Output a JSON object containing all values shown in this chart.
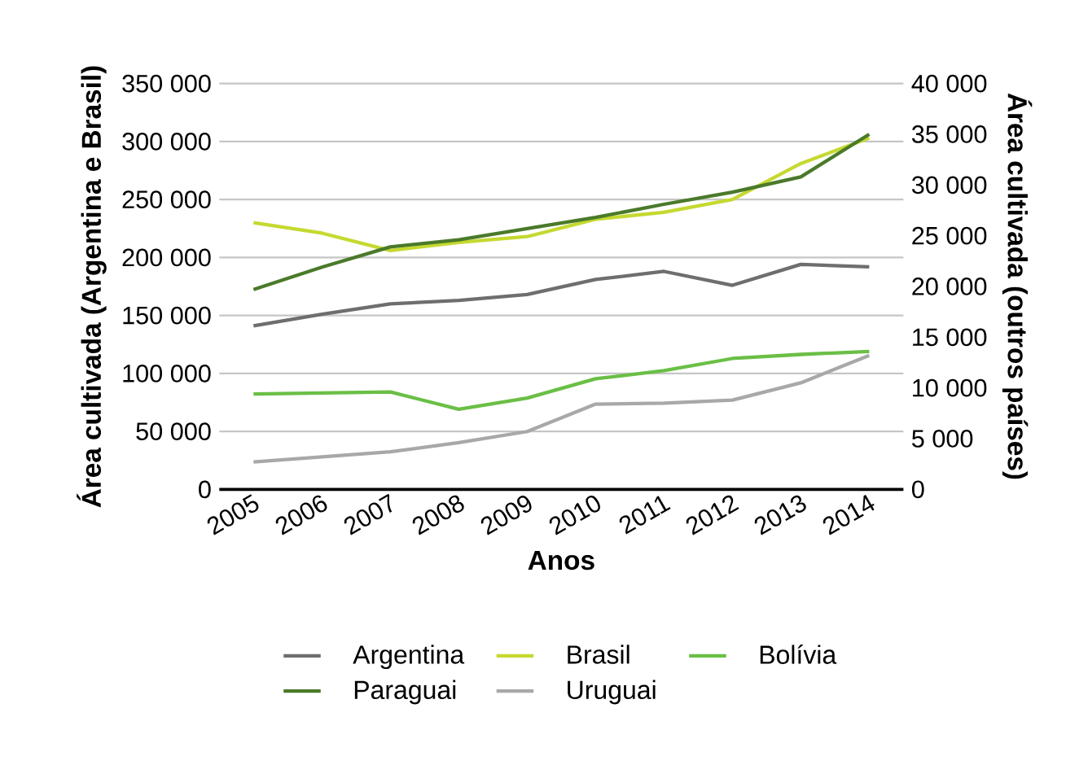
{
  "chart_data": {
    "type": "line",
    "xlabel": "Anos",
    "ylabel": "Área cultivada (Argentina e Brasil)",
    "y2label": "Área cultivada (outros países)",
    "categories": [
      "2005",
      "2006",
      "2007",
      "2008",
      "2009",
      "2010",
      "2011",
      "2012",
      "2013",
      "2014"
    ],
    "series": [
      {
        "name": "Argentina",
        "color": "#6d6e70",
        "values": [
          141000,
          151000,
          160000,
          163000,
          168000,
          181000,
          188000,
          176000,
          194000,
          192000
        ]
      },
      {
        "name": "Brasil",
        "color": "#c5d930",
        "values": [
          230000,
          221000,
          206000,
          213000,
          218000,
          233000,
          239000,
          250000,
          281000,
          303000
        ]
      },
      {
        "name": "Bolívia",
        "color": "#6abf45",
        "axis": "y2",
        "values": [
          9400,
          9500,
          9600,
          7900,
          9000,
          10900,
          11700,
          12900,
          13300,
          13600
        ]
      },
      {
        "name": "Paraguai",
        "color": "#4a7a2a",
        "axis": "y2",
        "values": [
          19700,
          21900,
          23900,
          24600,
          25700,
          26800,
          28100,
          29300,
          30800,
          35000
        ]
      },
      {
        "name": "Uruguai",
        "color": "#a8a8a8",
        "axis": "y2",
        "values": [
          2700,
          3200,
          3700,
          4600,
          5700,
          8400,
          8500,
          8800,
          10500,
          13200
        ]
      }
    ],
    "ylim": [
      0,
      350000
    ],
    "yticks": [
      0,
      {
        "value": 50000,
        "label": "50 000"
      },
      {
        "value": 100000,
        "label": "100 000"
      },
      {
        "value": 150000,
        "label": "150 000"
      },
      {
        "value": 200000,
        "label": "200 000"
      },
      {
        "value": 250000,
        "label": "250 000"
      },
      {
        "value": 300000,
        "label": "300 000"
      },
      {
        "value": 350000,
        "label": "350 000"
      }
    ],
    "y2lim": [
      0,
      40000
    ],
    "y2ticks": [
      0,
      {
        "value": 5000,
        "label": "5 000"
      },
      {
        "value": 10000,
        "label": "10 000"
      },
      {
        "value": 15000,
        "label": "15 000"
      },
      {
        "value": 20000,
        "label": "20 000"
      },
      {
        "value": 25000,
        "label": "25 000"
      },
      {
        "value": 30000,
        "label": "30 000"
      },
      {
        "value": 35000,
        "label": "35 000"
      },
      {
        "value": 40000,
        "label": "40 000"
      }
    ],
    "grid": "y",
    "legend": "bottom",
    "line_style": "solid",
    "marker": "none"
  }
}
